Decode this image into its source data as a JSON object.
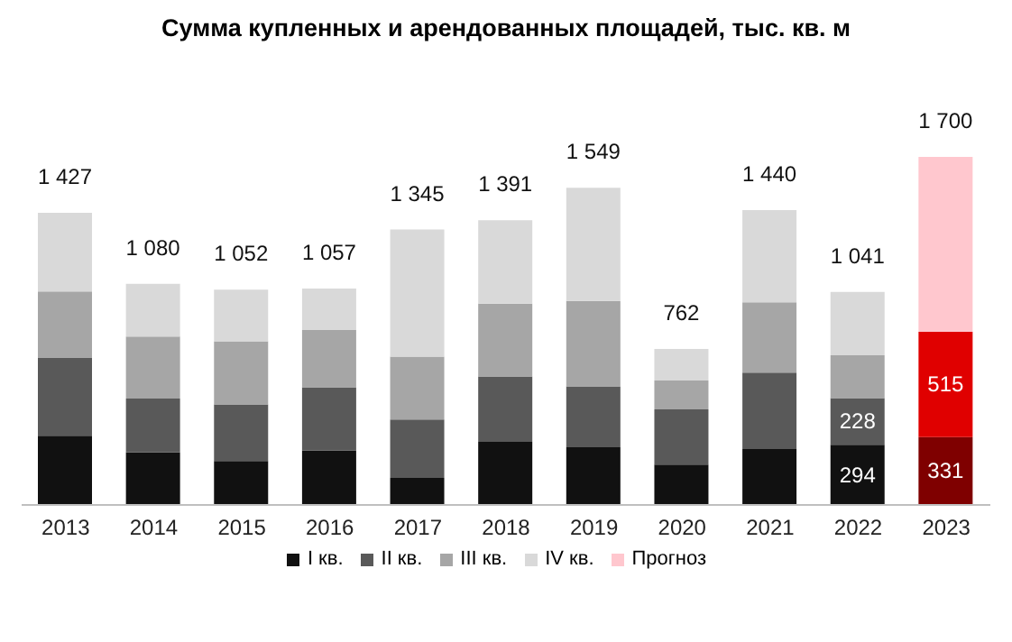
{
  "chart_data": {
    "type": "bar",
    "title": "Сумма купленных и арендованных площадей, тыс. кв. м",
    "stacked": true,
    "legend": "bottom",
    "categories": [
      "2013",
      "2014",
      "2015",
      "2016",
      "2017",
      "2018",
      "2019",
      "2020",
      "2021",
      "2022",
      "2023"
    ],
    "series": [
      {
        "name": "I кв.",
        "color": "#111111",
        "colors": [
          "#111111",
          "#111111",
          "#111111",
          "#111111",
          "#111111",
          "#111111",
          "#111111",
          "#111111",
          "#111111",
          "#111111",
          "#7f0000"
        ],
        "values": [
          338,
          256,
          215,
          267,
          132,
          308,
          282,
          197,
          273,
          294,
          331
        ],
        "value_labels": [
          null,
          null,
          null,
          null,
          null,
          null,
          null,
          null,
          null,
          "294",
          "331"
        ]
      },
      {
        "name": "II кв.",
        "color": "#595959",
        "colors": [
          "#595959",
          "#595959",
          "#595959",
          "#595959",
          "#595959",
          "#595959",
          "#595959",
          "#595959",
          "#595959",
          "#595959",
          "#e00000"
        ],
        "values": [
          382,
          264,
          276,
          308,
          285,
          320,
          297,
          270,
          373,
          228,
          515
        ],
        "value_labels": [
          null,
          null,
          null,
          null,
          null,
          null,
          null,
          null,
          null,
          "228",
          "515"
        ]
      },
      {
        "name": "III кв.",
        "color": "#a6a6a6",
        "values": [
          323,
          303,
          308,
          279,
          308,
          355,
          417,
          141,
          344,
          209,
          null
        ]
      },
      {
        "name": "IV кв.",
        "color": "#d9d9d9",
        "values": [
          384,
          257,
          253,
          203,
          620,
          408,
          553,
          154,
          450,
          310,
          null
        ]
      },
      {
        "name": "Прогноз",
        "color": "#ffc7ce",
        "values": [
          null,
          null,
          null,
          null,
          null,
          null,
          null,
          null,
          null,
          null,
          854
        ]
      }
    ],
    "totals": [
      "1 427",
      "1 080",
      "1 052",
      "1 057",
      "1 345",
      "1 391",
      "1 549",
      "762",
      "1 440",
      "1 041",
      "1 700"
    ]
  }
}
